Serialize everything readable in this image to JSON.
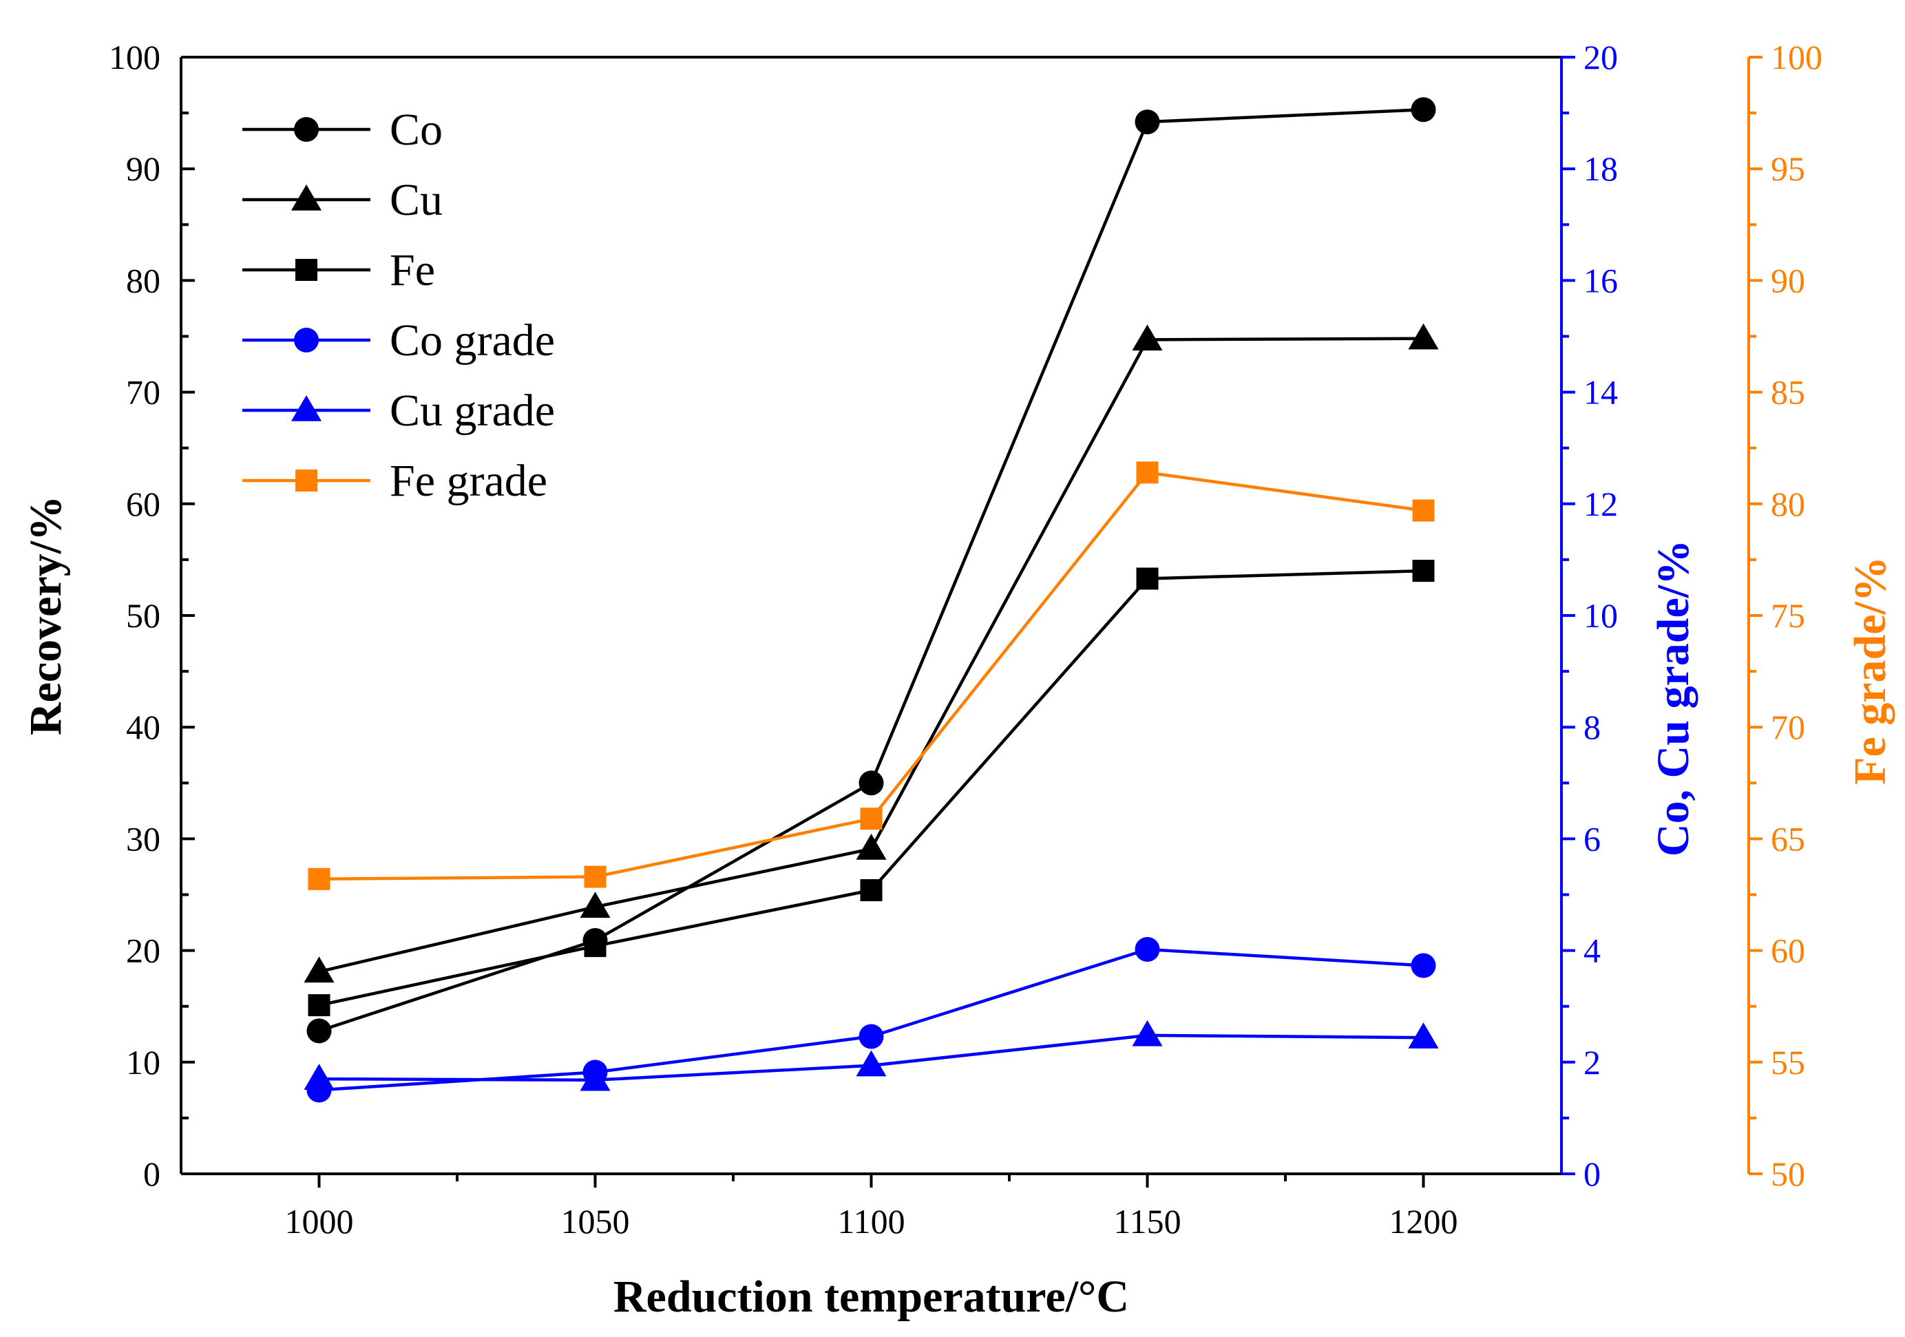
{
  "chart_data": {
    "type": "line",
    "title": "",
    "xlabel": "Reduction temperature/°C",
    "ylabel": "Recovery/%",
    "y2label": "Co, Cu grade/%",
    "y3label": "Fe grade/%",
    "x": [
      1000,
      1050,
      1100,
      1150,
      1200
    ],
    "xlim": [
      975,
      1225
    ],
    "xticks": [
      "1000",
      "1050",
      "1100",
      "1150",
      "1200"
    ],
    "ylim": [
      0,
      100
    ],
    "yticks": [
      "0",
      "10",
      "20",
      "30",
      "40",
      "50",
      "60",
      "70",
      "80",
      "90",
      "100"
    ],
    "y2lim": [
      0,
      20
    ],
    "y2ticks": [
      "0",
      "2",
      "4",
      "6",
      "8",
      "10",
      "12",
      "14",
      "16",
      "18",
      "20"
    ],
    "y3lim": [
      50,
      100
    ],
    "y3ticks": [
      "50",
      "55",
      "60",
      "65",
      "70",
      "75",
      "80",
      "85",
      "90",
      "95",
      "100"
    ],
    "colors": {
      "recovery": "#000000",
      "cocu_grade": "#0000FF",
      "fe_grade": "#FF8000"
    },
    "series": [
      {
        "name": "Co",
        "axis": "left",
        "marker": "circle",
        "color": "#000000",
        "values": [
          12.8,
          20.9,
          35.0,
          94.2,
          95.3
        ]
      },
      {
        "name": "Cu",
        "axis": "left",
        "marker": "triangle",
        "color": "#000000",
        "values": [
          18.1,
          23.9,
          29.1,
          74.7,
          74.8
        ]
      },
      {
        "name": "Fe",
        "axis": "left",
        "marker": "square",
        "color": "#000000",
        "values": [
          15.1,
          20.4,
          25.4,
          53.3,
          54.0
        ]
      },
      {
        "name": "Co grade",
        "axis": "right1",
        "marker": "circle",
        "color": "#0000FF",
        "values": [
          1.5,
          1.82,
          2.46,
          4.02,
          3.73
        ]
      },
      {
        "name": "Cu grade",
        "axis": "right1",
        "marker": "triangle",
        "color": "#0000FF",
        "values": [
          1.7,
          1.68,
          1.94,
          2.48,
          2.44
        ]
      },
      {
        "name": "Fe grade",
        "axis": "right2",
        "marker": "square",
        "color": "#FF8000",
        "values": [
          63.2,
          63.3,
          65.9,
          81.4,
          79.7
        ]
      }
    ],
    "legend": [
      "Co",
      "Cu",
      "Fe",
      "Co grade",
      "Cu grade",
      "Fe grade"
    ],
    "legend_position": "top-left",
    "grid": false
  }
}
